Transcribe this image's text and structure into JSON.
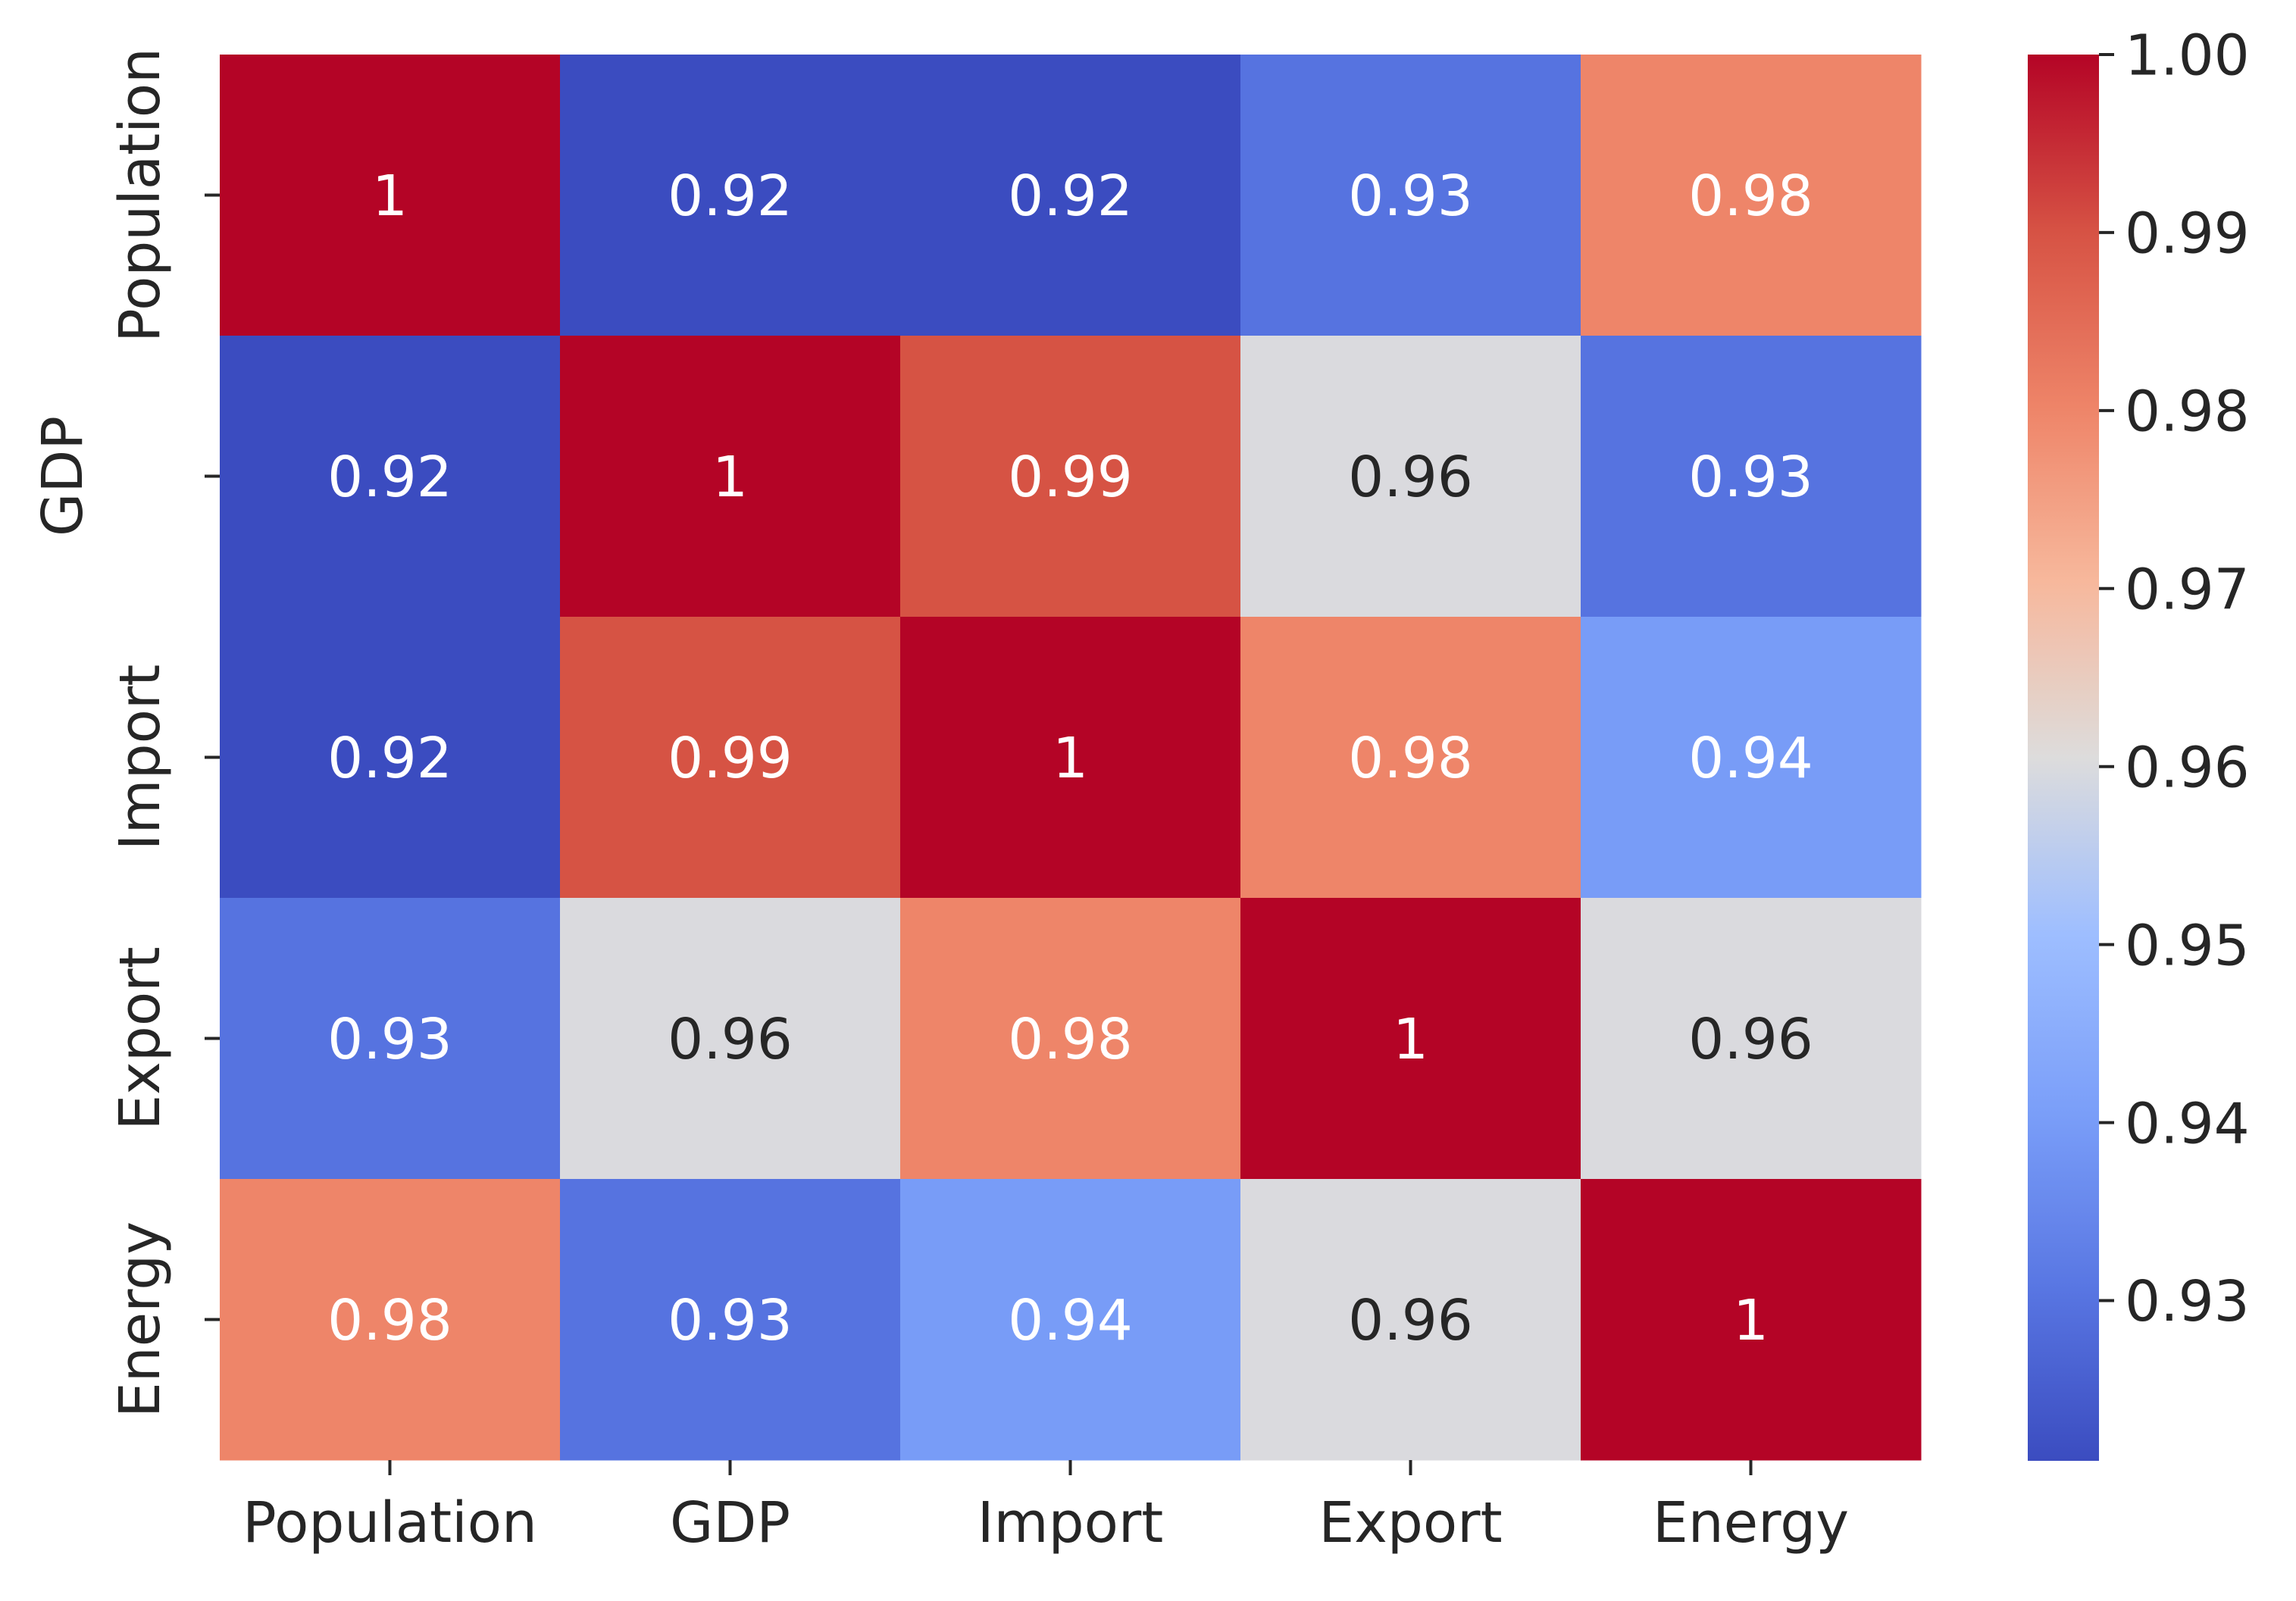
{
  "chart_data": {
    "type": "heatmap",
    "title": "",
    "xlabel": "",
    "ylabel": "",
    "x_categories": [
      "Population",
      "GDP",
      "Import",
      "Export",
      "Energy"
    ],
    "y_categories": [
      "Population",
      "GDP",
      "Import",
      "Export",
      "Energy"
    ],
    "matrix": [
      [
        1.0,
        0.92,
        0.92,
        0.93,
        0.98
      ],
      [
        0.92,
        1.0,
        0.99,
        0.96,
        0.93
      ],
      [
        0.92,
        0.99,
        1.0,
        0.98,
        0.94
      ],
      [
        0.93,
        0.96,
        0.98,
        1.0,
        0.96
      ],
      [
        0.98,
        0.93,
        0.94,
        0.96,
        1.0
      ]
    ],
    "cell_labels": [
      [
        "1",
        "0.92",
        "0.92",
        "0.93",
        "0.98"
      ],
      [
        "0.92",
        "1",
        "0.99",
        "0.96",
        "0.93"
      ],
      [
        "0.92",
        "0.99",
        "1",
        "0.98",
        "0.94"
      ],
      [
        "0.93",
        "0.96",
        "0.98",
        "1",
        "0.96"
      ],
      [
        "0.98",
        "0.93",
        "0.94",
        "0.96",
        "1"
      ]
    ],
    "colormap": "coolwarm",
    "colormap_stops": [
      "#3b4cc0",
      "#dddcdc",
      "#b40426"
    ],
    "vmin": 0.921,
    "vmax": 1.0,
    "colorbar": {
      "ticks": [
        0.93,
        0.94,
        0.95,
        0.96,
        0.97,
        0.98,
        0.99,
        1.0
      ],
      "tick_labels": [
        "0.93",
        "0.94",
        "0.95",
        "0.96",
        "0.97",
        "0.98",
        "0.99",
        "1.00"
      ],
      "placement": "right"
    },
    "grid": false
  }
}
